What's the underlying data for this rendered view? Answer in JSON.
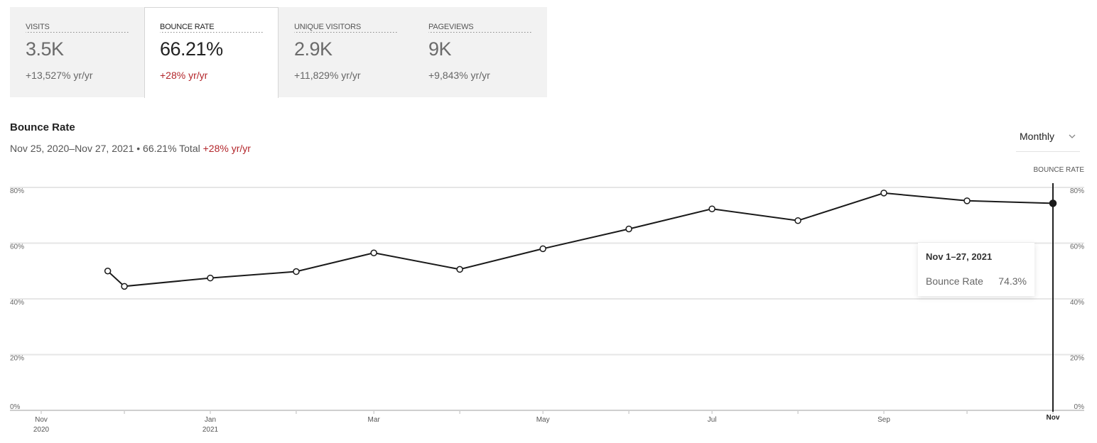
{
  "cards": [
    {
      "label": "VISITS",
      "value": "3.5K",
      "change": "+13,527% yr/yr",
      "active": false,
      "highlight": false
    },
    {
      "label": "BOUNCE RATE",
      "value": "66.21%",
      "change": "+28% yr/yr",
      "active": true,
      "highlight": true
    },
    {
      "label": "UNIQUE VISITORS",
      "value": "2.9K",
      "change": "+11,829% yr/yr",
      "active": false,
      "highlight": false
    },
    {
      "label": "PAGEVIEWS",
      "value": "9K",
      "change": "+9,843% yr/yr",
      "active": false,
      "highlight": false
    }
  ],
  "chart": {
    "title": "Bounce Rate",
    "subtitle_range": "Nov 25, 2020–Nov 27, 2021 • 66.21% Total",
    "subtitle_change": "+28% yr/yr",
    "period": "Monthly",
    "period_icon": "chevron-down-icon",
    "right_axis_title": "BOUNCE RATE"
  },
  "tooltip": {
    "date": "Nov 1–27, 2021",
    "label": "Bounce Rate",
    "value": "74.3%"
  },
  "colors": {
    "accent_red": "#b3262b",
    "line": "#1a1a1a",
    "grid": "#e6e6e6",
    "card_bg": "#f2f2f2"
  },
  "chart_data": {
    "type": "line",
    "x": [
      "2020-11-25",
      "2020-12-01",
      "2021-01-01",
      "2021-02-01",
      "2021-03-01",
      "2021-04-01",
      "2021-05-01",
      "2021-06-01",
      "2021-07-01",
      "2021-08-01",
      "2021-09-01",
      "2021-10-01",
      "2021-11-01"
    ],
    "series": [
      {
        "values": [
          50.0,
          44.5,
          47.5,
          49.8,
          56.5,
          50.6,
          58.0,
          65.1,
          72.3,
          68.1,
          78.0,
          75.2,
          74.3
        ]
      }
    ],
    "ylim": [
      0,
      80
    ],
    "yticks": [
      0,
      20,
      40,
      60,
      80
    ],
    "ytick_labels": [
      "0%",
      "20%",
      "40%",
      "60%",
      "80%"
    ],
    "xtick_labels": [
      {
        "date": "2020-11-01",
        "line1": "Nov",
        "line2": "2020"
      },
      {
        "date": "2021-01-01",
        "line1": "Jan",
        "line2": "2021"
      },
      {
        "date": "2021-03-01",
        "line1": "Mar",
        "line2": ""
      },
      {
        "date": "2021-05-01",
        "line1": "May",
        "line2": ""
      },
      {
        "date": "2021-07-01",
        "line1": "Jul",
        "line2": ""
      },
      {
        "date": "2021-09-01",
        "line1": "Sep",
        "line2": ""
      },
      {
        "date": "2021-11-01",
        "line1": "Nov",
        "line2": ""
      }
    ],
    "minor_tick_dates": [
      "2020-12-01",
      "2021-02-01",
      "2021-04-01",
      "2021-06-01",
      "2021-08-01",
      "2021-10-01"
    ],
    "highlight_index": 12,
    "grid": true
  }
}
